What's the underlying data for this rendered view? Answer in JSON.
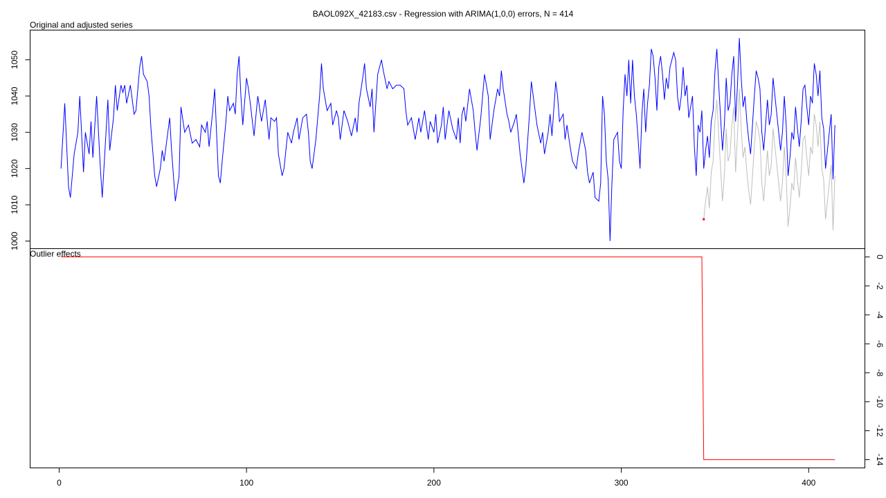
{
  "title": "BAOL092X_42183.csv - Regression with ARIMA(1,0,0) errors, N = 414",
  "chart_data": [
    {
      "type": "line",
      "title": "Original and adjusted series",
      "xlim": [
        -15.5,
        430
      ],
      "ylim": [
        997.9,
        1058.2
      ],
      "yticks": [
        1000,
        1010,
        1020,
        1030,
        1040,
        1050
      ],
      "series": [
        {
          "color": "#0000ff",
          "x": [
            1,
            3,
            5,
            6,
            8,
            10,
            11,
            13,
            14,
            16,
            17,
            18,
            20,
            22,
            23,
            25,
            26,
            27,
            29,
            30,
            31,
            33,
            34,
            35,
            36,
            38,
            40,
            41,
            43,
            44,
            45,
            47,
            48,
            49,
            51,
            52,
            54,
            55,
            56,
            58,
            59,
            60,
            62,
            64,
            65,
            67,
            69,
            71,
            73,
            75,
            76,
            78,
            79,
            80,
            82,
            83,
            84,
            85,
            86,
            87,
            89,
            90,
            91,
            93,
            94,
            95,
            96,
            97,
            98,
            100,
            101,
            102,
            104,
            106,
            108,
            110,
            112,
            113,
            115,
            116,
            117,
            119,
            120,
            122,
            124,
            125,
            127,
            128,
            130,
            132,
            133,
            134,
            135,
            137,
            139,
            140,
            141,
            143,
            145,
            146,
            148,
            149,
            150,
            152,
            154,
            156,
            158,
            159,
            160,
            162,
            163,
            164,
            166,
            167,
            168,
            170,
            172,
            173,
            175,
            176,
            178,
            180,
            182,
            184,
            185,
            186,
            188,
            190,
            192,
            193,
            195,
            197,
            198,
            200,
            201,
            202,
            204,
            205,
            206,
            208,
            210,
            212,
            213,
            214,
            215,
            216,
            217,
            219,
            221,
            222,
            223,
            225,
            227,
            229,
            230,
            232,
            234,
            235,
            236,
            237,
            239,
            240,
            241,
            243,
            244,
            246,
            247,
            248,
            249,
            251,
            252,
            253,
            255,
            257,
            258,
            259,
            261,
            262,
            263,
            265,
            266,
            267,
            269,
            270,
            271,
            273,
            274,
            276,
            277,
            279,
            281,
            282,
            283,
            285,
            286,
            288,
            289,
            290,
            291,
            292,
            293,
            294,
            295,
            296,
            298,
            299,
            300,
            301,
            302,
            303,
            304,
            305,
            306,
            307,
            308,
            309,
            310,
            311,
            312,
            313,
            314,
            315,
            316,
            317,
            318,
            319,
            320,
            321,
            322,
            323,
            324,
            325,
            326,
            328,
            329,
            330,
            331,
            332,
            333,
            334,
            335,
            336,
            337,
            338,
            339,
            340,
            341,
            342,
            343,
            344,
            345,
            346,
            347,
            348,
            349,
            350,
            351,
            352,
            353,
            354,
            355,
            356,
            357,
            358,
            359,
            360,
            361,
            362,
            363,
            364,
            365,
            366,
            367,
            368,
            369,
            370,
            371,
            372,
            373,
            374,
            375,
            376,
            377,
            378,
            379,
            380,
            381,
            382,
            384,
            385,
            386,
            387,
            388,
            389,
            390,
            391,
            392,
            393,
            394,
            395,
            396,
            397,
            398,
            399,
            400,
            401,
            402,
            403,
            404,
            405,
            406,
            407,
            408,
            409,
            410,
            411,
            412,
            413,
            414
          ],
          "values": [
            1020,
            1038,
            1015,
            1012,
            1024,
            1030,
            1040,
            1019,
            1030,
            1024,
            1033,
            1023,
            1040,
            1020,
            1012,
            1030,
            1039,
            1025,
            1034,
            1043,
            1036,
            1043,
            1041,
            1043,
            1038,
            1043,
            1035,
            1036,
            1048,
            1051,
            1046,
            1044,
            1040,
            1031,
            1018,
            1015,
            1020,
            1025,
            1022,
            1030,
            1034,
            1025,
            1011,
            1018,
            1037,
            1030,
            1032,
            1027,
            1028,
            1026,
            1032,
            1030,
            1033,
            1026,
            1036,
            1042,
            1030,
            1018,
            1016,
            1022,
            1033,
            1040,
            1036,
            1038,
            1035,
            1046,
            1051,
            1040,
            1032,
            1045,
            1042,
            1038,
            1029,
            1040,
            1033,
            1039,
            1028,
            1034,
            1033,
            1034,
            1024,
            1018,
            1020,
            1030,
            1027,
            1030,
            1034,
            1028,
            1034,
            1035,
            1030,
            1022,
            1020,
            1028,
            1040,
            1049,
            1042,
            1036,
            1038,
            1032,
            1036,
            1034,
            1028,
            1036,
            1033,
            1029,
            1034,
            1030,
            1038,
            1045,
            1049,
            1042,
            1037,
            1042,
            1030,
            1046,
            1050,
            1047,
            1042,
            1044,
            1042,
            1043,
            1043,
            1042,
            1036,
            1032,
            1034,
            1028,
            1034,
            1030,
            1036,
            1028,
            1033,
            1030,
            1035,
            1027,
            1032,
            1037,
            1028,
            1036,
            1031,
            1028,
            1034,
            1027,
            1035,
            1037,
            1033,
            1042,
            1036,
            1030,
            1025,
            1034,
            1046,
            1040,
            1028,
            1036,
            1042,
            1040,
            1047,
            1042,
            1035,
            1033,
            1030,
            1033,
            1035,
            1024,
            1020,
            1016,
            1020,
            1035,
            1044,
            1040,
            1032,
            1027,
            1030,
            1024,
            1030,
            1035,
            1029,
            1044,
            1040,
            1033,
            1035,
            1028,
            1032,
            1025,
            1022,
            1020,
            1024,
            1030,
            1025,
            1019,
            1016,
            1019,
            1012,
            1011,
            1016,
            1040,
            1035,
            1022,
            1017,
            1000,
            1016,
            1028,
            1030,
            1022,
            1020,
            1036,
            1046,
            1040,
            1050,
            1038,
            1050,
            1040,
            1035,
            1028,
            1020,
            1035,
            1042,
            1030,
            1038,
            1043,
            1053,
            1051,
            1045,
            1036,
            1048,
            1051,
            1046,
            1039,
            1045,
            1042,
            1048,
            1052,
            1050,
            1040,
            1036,
            1040,
            1048,
            1040,
            1043,
            1034,
            1037,
            1040,
            1026,
            1018,
            1032,
            1030,
            1036,
            1020,
            1025,
            1029,
            1023,
            1033,
            1036,
            1047,
            1053,
            1043,
            1034,
            1025,
            1032,
            1045,
            1036,
            1038,
            1046,
            1051,
            1033,
            1043,
            1056,
            1045,
            1037,
            1040,
            1033,
            1028,
            1024,
            1032,
            1040,
            1047,
            1045,
            1042,
            1030,
            1025,
            1032,
            1039,
            1032,
            1035,
            1045,
            1040,
            1030,
            1025,
            1030,
            1040,
            1032,
            1018,
            1023,
            1030,
            1028,
            1037,
            1031,
            1026,
            1033,
            1042,
            1043,
            1037,
            1032,
            1040,
            1038,
            1049,
            1046,
            1040,
            1047,
            1034,
            1031,
            1020,
            1025,
            1030,
            1035,
            1017,
            1032
          ]
        },
        {
          "color": "#bebebe",
          "x": [
            344,
            345,
            346,
            347,
            348,
            349,
            350,
            351,
            352,
            353,
            354,
            355,
            356,
            357,
            358,
            359,
            360,
            361,
            362,
            363,
            364,
            365,
            366,
            367,
            368,
            369,
            370,
            371,
            372,
            373,
            374,
            375,
            376,
            377,
            378,
            379,
            380,
            381,
            382,
            384,
            385,
            386,
            387,
            388,
            389,
            390,
            391,
            392,
            393,
            394,
            395,
            396,
            397,
            398,
            399,
            400,
            401,
            402,
            403,
            404,
            405,
            406,
            407,
            408,
            409,
            410,
            411,
            412,
            413,
            414
          ],
          "values": [
            1006,
            1011,
            1015,
            1009,
            1019,
            1022,
            1033,
            1039,
            1029,
            1020,
            1011,
            1018,
            1031,
            1022,
            1024,
            1032,
            1037,
            1019,
            1029,
            1042,
            1031,
            1023,
            1026,
            1019,
            1014,
            1010,
            1018,
            1026,
            1033,
            1031,
            1028,
            1016,
            1011,
            1018,
            1025,
            1018,
            1021,
            1031,
            1026,
            1016,
            1011,
            1016,
            1026,
            1018,
            1004,
            1009,
            1016,
            1014,
            1023,
            1017,
            1012,
            1019,
            1028,
            1029,
            1023,
            1018,
            1026,
            1024,
            1035,
            1032,
            1026,
            1033,
            1020,
            1017,
            1006,
            1011,
            1016,
            1021,
            1003,
            1018
          ]
        }
      ],
      "points": {
        "color": "#ff0000",
        "x": [
          344
        ],
        "values": [
          1006
        ]
      }
    },
    {
      "type": "line",
      "title": "Outlier effects",
      "xlim": [
        -15.5,
        430
      ],
      "ylim": [
        -14.57,
        0.57
      ],
      "xticks": [
        0,
        100,
        200,
        300,
        400
      ],
      "yticks": [
        0,
        -2,
        -4,
        -6,
        -8,
        -10,
        -12,
        -14
      ],
      "series": [
        {
          "color": "#ff0000",
          "x": [
            1,
            343,
            344,
            414
          ],
          "values": [
            0,
            0,
            -14,
            -14
          ]
        }
      ]
    }
  ]
}
